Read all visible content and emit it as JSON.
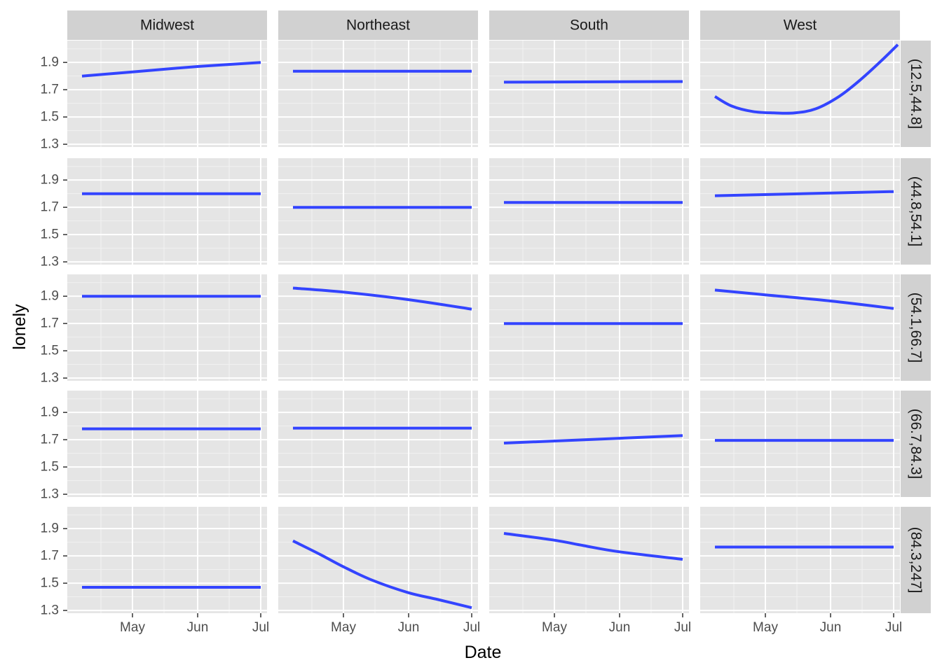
{
  "chart_data": {
    "type": "line",
    "facet_layout": "grid",
    "xlabel": "Date",
    "ylabel": "lonely",
    "columns": [
      "Midwest",
      "Northeast",
      "South",
      "West"
    ],
    "rows": [
      "(12.5,44.8]",
      "(44.8,54.1]",
      "(54.1,66.7]",
      "(66.7,84.3]",
      "(84.3,247]"
    ],
    "x_ticks": [
      {
        "date": "2020-05-01",
        "label": "May"
      },
      {
        "date": "2020-06-01",
        "label": "Jun"
      },
      {
        "date": "2020-07-01",
        "label": "Jul"
      }
    ],
    "x_range": [
      "2020-03-31",
      "2020-07-04"
    ],
    "x_minor_ticks": [
      "2020-04-16",
      "2020-05-16",
      "2020-06-16"
    ],
    "y_ticks": [
      1.3,
      1.5,
      1.7,
      1.9
    ],
    "ylim": [
      1.28,
      2.06
    ],
    "grid": true,
    "series_color": "#3344ff",
    "panel_bg": "#e5e5e5",
    "strip_bg": "#d1d1d1",
    "panels": [
      {
        "row": "(12.5,44.8]",
        "col": "Midwest",
        "x": [
          "2020-04-07",
          "2020-05-01",
          "2020-06-01",
          "2020-07-01"
        ],
        "y": [
          1.8,
          1.83,
          1.87,
          1.9
        ]
      },
      {
        "row": "(12.5,44.8]",
        "col": "Northeast",
        "x": [
          "2020-04-07",
          "2020-07-01"
        ],
        "y": [
          1.835,
          1.835
        ]
      },
      {
        "row": "(12.5,44.8]",
        "col": "South",
        "x": [
          "2020-04-07",
          "2020-07-01"
        ],
        "y": [
          1.755,
          1.76
        ]
      },
      {
        "row": "(12.5,44.8]",
        "col": "West",
        "x": [
          "2020-04-07",
          "2020-04-15",
          "2020-04-25",
          "2020-05-05",
          "2020-05-15",
          "2020-05-25",
          "2020-06-05",
          "2020-06-15",
          "2020-06-25",
          "2020-07-03"
        ],
        "y": [
          1.65,
          1.58,
          1.54,
          1.53,
          1.53,
          1.56,
          1.65,
          1.77,
          1.91,
          2.03
        ]
      },
      {
        "row": "(44.8,54.1]",
        "col": "Midwest",
        "x": [
          "2020-04-07",
          "2020-07-01"
        ],
        "y": [
          1.8,
          1.8
        ]
      },
      {
        "row": "(44.8,54.1]",
        "col": "Northeast",
        "x": [
          "2020-04-07",
          "2020-07-01"
        ],
        "y": [
          1.7,
          1.7
        ]
      },
      {
        "row": "(44.8,54.1]",
        "col": "South",
        "x": [
          "2020-04-07",
          "2020-07-01"
        ],
        "y": [
          1.735,
          1.735
        ]
      },
      {
        "row": "(44.8,54.1]",
        "col": "West",
        "x": [
          "2020-04-07",
          "2020-07-01"
        ],
        "y": [
          1.785,
          1.815
        ]
      },
      {
        "row": "(54.1,66.7]",
        "col": "Midwest",
        "x": [
          "2020-04-07",
          "2020-07-01"
        ],
        "y": [
          1.9,
          1.9
        ]
      },
      {
        "row": "(54.1,66.7]",
        "col": "Northeast",
        "x": [
          "2020-04-07",
          "2020-05-01",
          "2020-06-01",
          "2020-07-01"
        ],
        "y": [
          1.96,
          1.93,
          1.875,
          1.805
        ]
      },
      {
        "row": "(54.1,66.7]",
        "col": "South",
        "x": [
          "2020-04-07",
          "2020-07-01"
        ],
        "y": [
          1.7,
          1.7
        ]
      },
      {
        "row": "(54.1,66.7]",
        "col": "West",
        "x": [
          "2020-04-07",
          "2020-05-01",
          "2020-06-01",
          "2020-07-01"
        ],
        "y": [
          1.945,
          1.91,
          1.865,
          1.81
        ]
      },
      {
        "row": "(66.7,84.3]",
        "col": "Midwest",
        "x": [
          "2020-04-07",
          "2020-07-01"
        ],
        "y": [
          1.78,
          1.78
        ]
      },
      {
        "row": "(66.7,84.3]",
        "col": "Northeast",
        "x": [
          "2020-04-07",
          "2020-07-01"
        ],
        "y": [
          1.785,
          1.785
        ]
      },
      {
        "row": "(66.7,84.3]",
        "col": "South",
        "x": [
          "2020-04-07",
          "2020-07-01"
        ],
        "y": [
          1.675,
          1.73
        ]
      },
      {
        "row": "(66.7,84.3]",
        "col": "West",
        "x": [
          "2020-04-07",
          "2020-07-01"
        ],
        "y": [
          1.695,
          1.695
        ]
      },
      {
        "row": "(84.3,247]",
        "col": "Midwest",
        "x": [
          "2020-04-07",
          "2020-07-01"
        ],
        "y": [
          1.47,
          1.47
        ]
      },
      {
        "row": "(84.3,247]",
        "col": "Northeast",
        "x": [
          "2020-04-07",
          "2020-04-20",
          "2020-05-01",
          "2020-05-15",
          "2020-06-01",
          "2020-06-15",
          "2020-07-01"
        ],
        "y": [
          1.81,
          1.71,
          1.62,
          1.52,
          1.43,
          1.38,
          1.32
        ]
      },
      {
        "row": "(84.3,247]",
        "col": "South",
        "x": [
          "2020-04-07",
          "2020-05-01",
          "2020-05-15",
          "2020-06-01",
          "2020-07-01"
        ],
        "y": [
          1.865,
          1.815,
          1.775,
          1.73,
          1.675
        ]
      },
      {
        "row": "(84.3,247]",
        "col": "West",
        "x": [
          "2020-04-07",
          "2020-07-01"
        ],
        "y": [
          1.765,
          1.765
        ]
      }
    ]
  }
}
